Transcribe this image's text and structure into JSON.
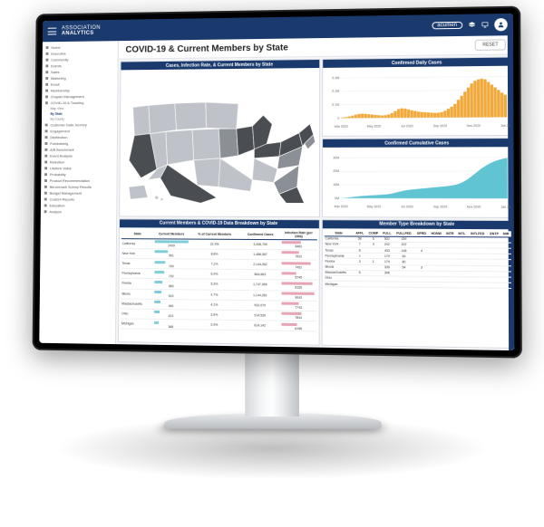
{
  "brand": {
    "line1": "ASSOCIATION",
    "line2": "ANALYTICS"
  },
  "product_badge": "acumen",
  "page_title": "COVID-19  & Current Members by State",
  "reset_label": "RESET",
  "sidebar": {
    "items": [
      "Home",
      "Executive",
      "Community",
      "Events",
      "Sales",
      "Marketing",
      "Email",
      "Membership",
      "Chapter Management",
      "COVID-19 & Tracking",
      "Map View",
      "By State",
      "By County",
      "Customer Data Journey",
      "Engagement",
      "Distribution",
      "Fundraising",
      "A/B Benchmark",
      "Event Analysis",
      "Retention",
      "Lifetime Value",
      "Probability",
      "Product Recommendation",
      "Benchmark Survey Results",
      "Budget Management",
      "Custom Reports",
      "Education",
      "Analyze"
    ],
    "active_index": 11
  },
  "panels": {
    "map_title": "Cases, Infection Rate, & Current Members by State",
    "daily_title": "Confirmed Daily Cases",
    "cumul_title": "Confirmed Cumulative Cases",
    "table1_title": "Current Members & COVID-19 Data Breakdown by State",
    "table2_title": "Member Type Breakdown by State"
  },
  "colors": {
    "navy": "#1a3a6e",
    "orange": "#f2a93b",
    "teal": "#4fbecd",
    "bar_teal": "#7fcdd6",
    "bar_pink": "#e6a4b4",
    "map_light": "#bfc3c9",
    "map_mid": "#8b8f96",
    "map_dark": "#4a4d52",
    "grid": "#e6e8ec",
    "panel_border": "#d8dbe1"
  },
  "map": {
    "highlighted_dark": [
      "CA",
      "TX",
      "FL",
      "NY",
      "IL",
      "PA",
      "OH",
      "MI"
    ],
    "highlighted_mid": [
      "GA",
      "NC",
      "VA",
      "WA",
      "AZ",
      "MA",
      "NJ",
      "TN",
      "MO",
      "WI",
      "IN",
      "CO"
    ]
  },
  "daily_chart": {
    "type": "bar",
    "x_labels": [
      "Mar 2020",
      "May 2020",
      "Jul 2020",
      "Sep 2020",
      "Nov 2020",
      "Jan 2021"
    ],
    "y_labels": [
      "0",
      "0.1M",
      "0.2M",
      "0.3M"
    ],
    "ylim": [
      0,
      0.3
    ],
    "color": "#f2a93b",
    "label_fontsize": 3.5,
    "values": [
      0.005,
      0.008,
      0.012,
      0.018,
      0.025,
      0.03,
      0.032,
      0.03,
      0.028,
      0.025,
      0.022,
      0.02,
      0.018,
      0.02,
      0.025,
      0.035,
      0.05,
      0.065,
      0.07,
      0.068,
      0.062,
      0.055,
      0.05,
      0.045,
      0.042,
      0.04,
      0.038,
      0.036,
      0.035,
      0.036,
      0.04,
      0.05,
      0.065,
      0.08,
      0.1,
      0.13,
      0.16,
      0.19,
      0.22,
      0.25,
      0.27,
      0.28,
      0.285,
      0.28,
      0.26,
      0.24,
      0.22,
      0.2,
      0.18,
      0.165
    ]
  },
  "cumul_chart": {
    "type": "area",
    "x_labels": [
      "Mar 2020",
      "May 2020",
      "Jul 2020",
      "Sep 2020",
      "Nov 2020",
      "Jan 2021"
    ],
    "y_labels": [
      "0M",
      "10M",
      "20M",
      "30M"
    ],
    "ylim": [
      0,
      30
    ],
    "color": "#4fbecd",
    "label_fontsize": 3.5,
    "values": [
      0.1,
      0.3,
      0.6,
      1.0,
      1.4,
      1.7,
      1.9,
      2.1,
      2.3,
      2.5,
      2.7,
      3.0,
      3.5,
      4.2,
      5.0,
      5.7,
      6.2,
      6.6,
      6.9,
      7.2,
      7.5,
      7.8,
      8.1,
      8.4,
      8.7,
      9.0,
      9.4,
      10.0,
      11.0,
      12.5,
      14.5,
      17.0,
      19.5,
      22.0,
      24.0,
      25.8,
      27.2,
      28.3,
      29.1,
      29.7
    ]
  },
  "table1": {
    "columns": [
      "State",
      "Current Members",
      "% of Current Members",
      "Confirmed Cases",
      "Infection Rate (per 100k)"
    ],
    "bar_col_index": 1,
    "rows": [
      {
        "state": "California",
        "members": 2439,
        "pct": "22.3%",
        "cases": "3,335,795",
        "rate": 8481,
        "bar": 100,
        "rate_bar": 55
      },
      {
        "state": "New York",
        "members": 961,
        "pct": "8.8%",
        "cases": "1,486,087",
        "rate": 7831,
        "bar": 40,
        "rate_bar": 50
      },
      {
        "state": "Texas",
        "members": 790,
        "pct": "7.2%",
        "cases": "2,144,062",
        "rate": 7451,
        "bar": 33,
        "rate_bar": 85
      },
      {
        "state": "Pennsylvania",
        "members": 702,
        "pct": "6.4%",
        "cases": "864,663",
        "rate": 5745,
        "bar": 29,
        "rate_bar": 42
      },
      {
        "state": "Florida",
        "members": 583,
        "pct": "5.3%",
        "cases": "1,747,065",
        "rate": 8165,
        "bar": 24,
        "rate_bar": 90
      },
      {
        "state": "Illinois",
        "members": 520,
        "pct": "4.7%",
        "cases": "1,144,281",
        "rate": 9043,
        "bar": 21,
        "rate_bar": 95
      },
      {
        "state": "Massachusetts",
        "members": 450,
        "pct": "4.1%",
        "cases": "532,070",
        "rate": 7743,
        "bar": 18,
        "rate_bar": 52
      },
      {
        "state": "Ohio",
        "members": 423,
        "pct": "3.9%",
        "cases": "914,530",
        "rate": 7844,
        "bar": 17,
        "rate_bar": 60
      },
      {
        "state": "Michigan",
        "members": 368,
        "pct": "3.4%",
        "cases": "614,142",
        "rate": 6158,
        "bar": 15,
        "rate_bar": 46
      }
    ]
  },
  "table2": {
    "columns": [
      "State",
      "AFFL",
      "COMP",
      "FULL",
      "FULLFED",
      "GPRD",
      "HONW",
      "INTR",
      "INTL",
      "INTLFED",
      "ENTP",
      "MIR"
    ],
    "rows": [
      {
        "state": "California",
        "vals": [
          58,
          6,
          502,
          339,
          "",
          "",
          "",
          "",
          "",
          "",
          ""
        ]
      },
      {
        "state": "New York",
        "vals": [
          7,
          3,
          242,
          102,
          "",
          "",
          "",
          "",
          "",
          "",
          ""
        ]
      },
      {
        "state": "Texas",
        "vals": [
          8,
          "",
          403,
          148,
          4,
          "",
          "",
          "",
          "",
          "",
          ""
        ]
      },
      {
        "state": "Pennsylvania",
        "vals": [
          1,
          "",
          179,
          60,
          "",
          "",
          "",
          "",
          "",
          "",
          ""
        ]
      },
      {
        "state": "Florida",
        "vals": [
          3,
          1,
          179,
          80,
          "",
          "",
          "",
          "",
          "",
          "",
          ""
        ]
      },
      {
        "state": "Illinois",
        "vals": [
          "",
          "",
          335,
          54,
          3,
          "",
          "",
          "",
          "",
          "",
          ""
        ]
      },
      {
        "state": "Massachusetts",
        "vals": [
          5,
          "",
          348,
          "",
          "",
          "",
          "",
          "",
          "",
          "",
          ""
        ]
      },
      {
        "state": "Ohio",
        "vals": [
          "",
          "",
          "",
          "",
          "",
          "",
          "",
          "",
          "",
          "",
          ""
        ]
      },
      {
        "state": "Michigan",
        "vals": [
          "",
          "",
          "",
          "",
          "",
          "",
          "",
          "",
          "",
          "",
          ""
        ]
      }
    ]
  }
}
